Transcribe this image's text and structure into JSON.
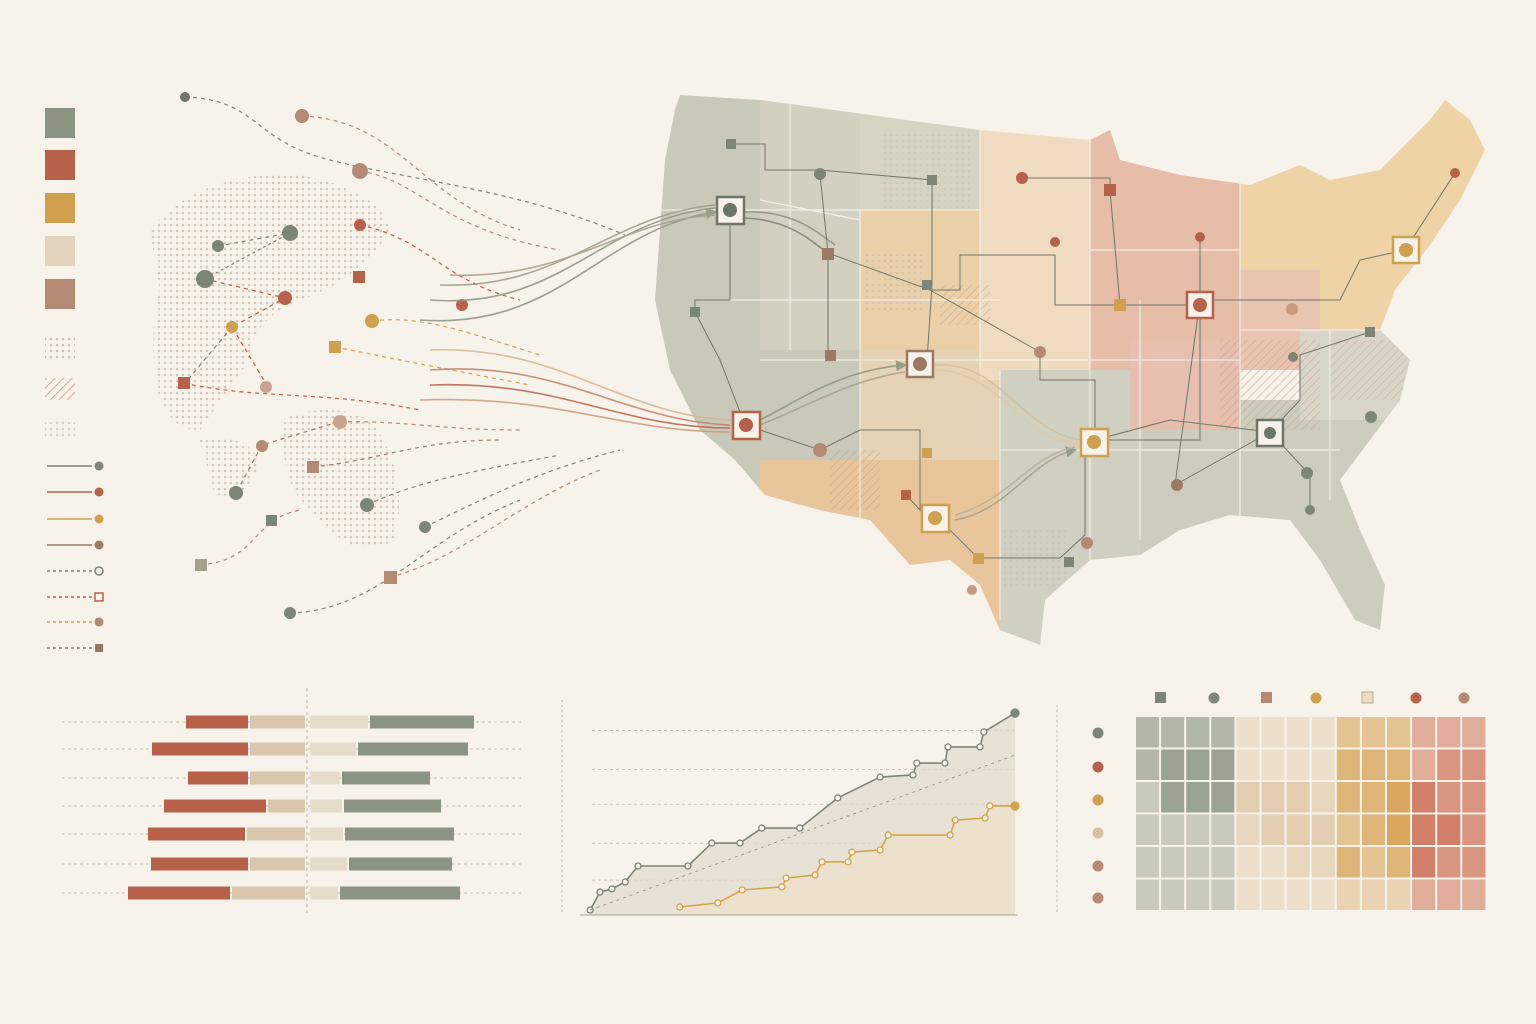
{
  "chart_data": [
    {
      "type": "diverging-bar",
      "grid": true,
      "series": [
        {
          "color": "#d9c7ad",
          "side": "left",
          "values": [
            55,
            55,
            55,
            37,
            58,
            55,
            73
          ]
        },
        {
          "color": "#b8614a",
          "side": "left",
          "values": [
            62,
            96,
            60,
            102,
            97,
            97,
            102
          ]
        },
        {
          "color": "#e6dccb",
          "side": "right",
          "values": [
            58,
            46,
            30,
            32,
            33,
            37,
            28
          ]
        },
        {
          "color": "#8b9482",
          "side": "right",
          "values": [
            104,
            110,
            88,
            97,
            109,
            103,
            120
          ]
        }
      ]
    },
    {
      "type": "step-line",
      "xlim": [
        0,
        100
      ],
      "ylim": [
        0,
        100
      ],
      "yticks": [
        17,
        35,
        54,
        71,
        90
      ],
      "grid": true,
      "series": [
        {
          "color": "#7d8577",
          "fill": "#e2dccd",
          "x": [
            0.5,
            2.8,
            5.6,
            8.7,
            11.7,
            23.4,
            29,
            35.6,
            40.7,
            49.6,
            58.5,
            68.4,
            76.1,
            77,
            83.6,
            84.3,
            91.8,
            92.7,
            100
          ],
          "values": [
            2.4,
            11.2,
            12.7,
            16.1,
            23.9,
            23.9,
            35.1,
            35.1,
            42.4,
            42.4,
            57.1,
            67.3,
            68.3,
            74.1,
            74.1,
            82,
            82,
            89.3,
            98.5
          ]
        },
        {
          "color": "#d4a449",
          "fill": "#ede0c8",
          "x": [
            21.5,
            30.4,
            36.1,
            45.4,
            46.4,
            53.2,
            54.8,
            60.9,
            61.8,
            68.4,
            70.3,
            84.8,
            86,
            93,
            94.1,
            100
          ],
          "values": [
            3.9,
            5.9,
            12.2,
            13.7,
            18,
            19.5,
            25.9,
            25.9,
            30.7,
            31.7,
            39,
            39,
            46.3,
            47.3,
            53.2,
            53.2
          ]
        },
        {
          "color": "#9a9a8a",
          "dashed": true,
          "x": [
            0.5,
            100
          ],
          "values": [
            2.4,
            78
          ]
        }
      ]
    },
    {
      "type": "heatmap",
      "column_colors": [
        "#7f8c7a",
        "#7f8c7a",
        "#7f8c7a",
        "#7f8c7a",
        "#dcc3a0",
        "#dcc3a0",
        "#dcc3a0",
        "#dcc3a0",
        "#d7a257",
        "#d7a257",
        "#d7a257",
        "#cf7a62",
        "#cf7a62",
        "#cf7a62"
      ],
      "values": [
        [
          2,
          2,
          2,
          2,
          1,
          1,
          1,
          1,
          2,
          2,
          2,
          2,
          2,
          2
        ],
        [
          2,
          3,
          3,
          3,
          1,
          1,
          1,
          1,
          3,
          3,
          3,
          2,
          3,
          3
        ],
        [
          1,
          3,
          3,
          3,
          3,
          3,
          3,
          2,
          3,
          3,
          4,
          4,
          3,
          3
        ],
        [
          1,
          1,
          1,
          1,
          2,
          3,
          3,
          3,
          2,
          3,
          4,
          4,
          4,
          3
        ],
        [
          1,
          1,
          1,
          1,
          1,
          1,
          2,
          2,
          3,
          2,
          3,
          4,
          3,
          3
        ],
        [
          1,
          1,
          1,
          1,
          1,
          1,
          1,
          1,
          1,
          1,
          1,
          2,
          2,
          2
        ]
      ]
    }
  ]
}
